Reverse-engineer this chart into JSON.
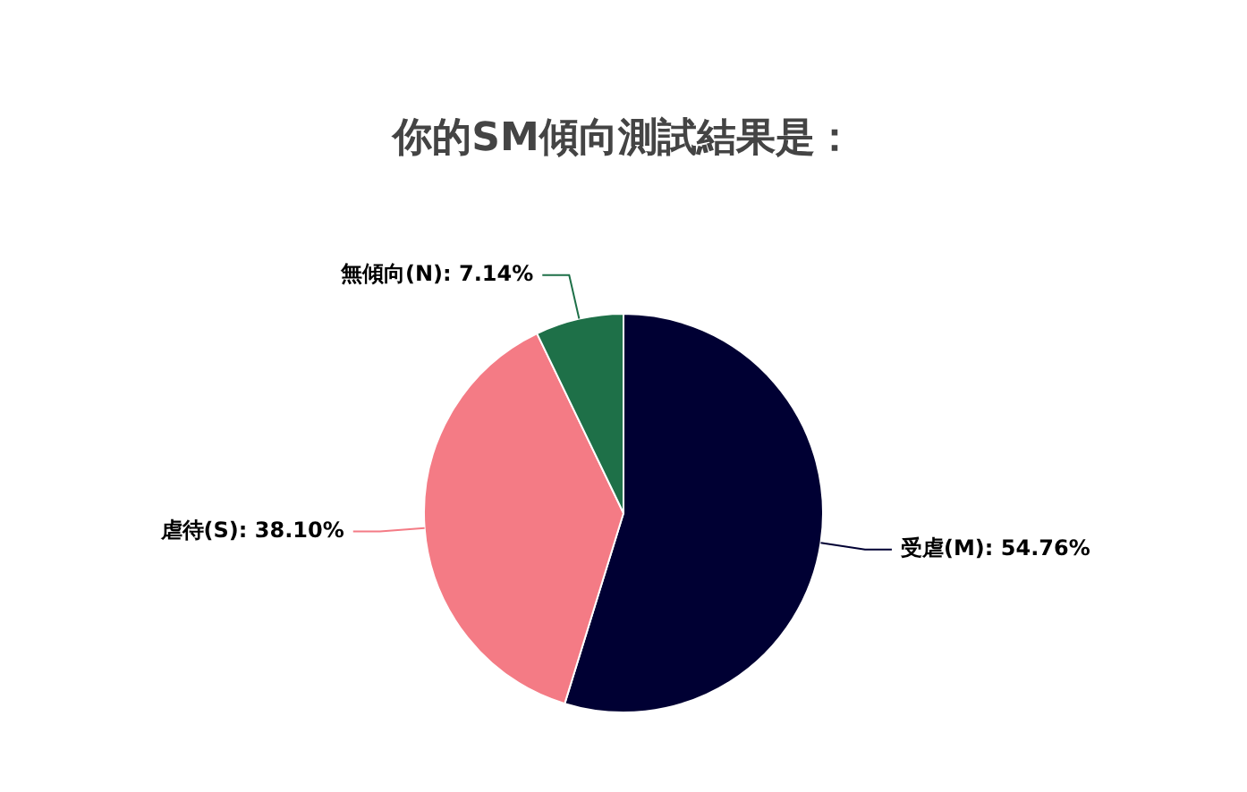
{
  "chart_data": {
    "type": "pie",
    "title": "你的SM傾向測試結果是：",
    "categories": [
      "受虐(M)",
      "虐待(S)",
      "無傾向(N)"
    ],
    "values": [
      54.76,
      38.1,
      7.14
    ],
    "value_labels": [
      "54.76%",
      "38.10%",
      "7.14%"
    ],
    "colors": [
      "#000033",
      "#f47b85",
      "#1e7048"
    ],
    "legend": false
  }
}
